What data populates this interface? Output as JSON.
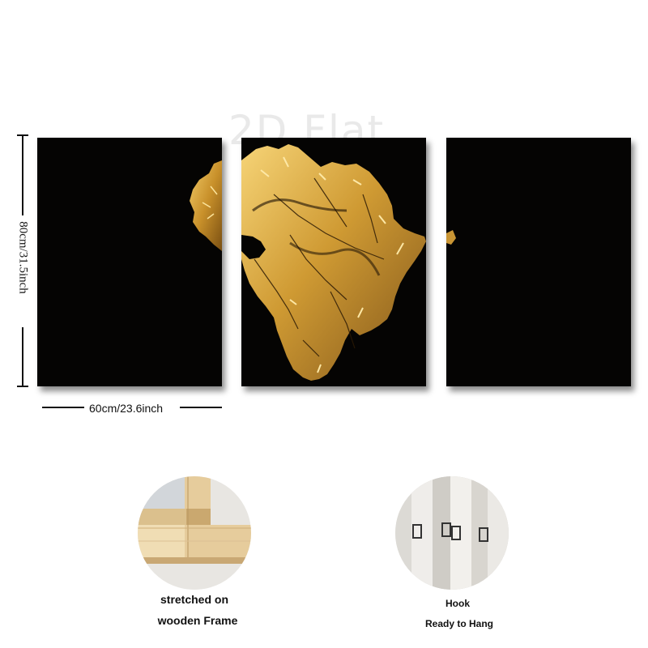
{
  "watermark": "2D Flat",
  "dimensions": {
    "height_label": "80cm/31.5inch",
    "width_label": "60cm/23.6inch"
  },
  "features": [
    {
      "caption_line1": "stretched on",
      "caption_line2": "wooden Frame",
      "icon": "wooden-frame-photo"
    },
    {
      "caption_line1": "Hook",
      "caption_line2": "Ready to Hang",
      "icon": "hook-photo"
    }
  ],
  "colors": {
    "panel_bg": "#050403",
    "gold": "#d4a33a",
    "gold_dark": "#8a5f17"
  }
}
